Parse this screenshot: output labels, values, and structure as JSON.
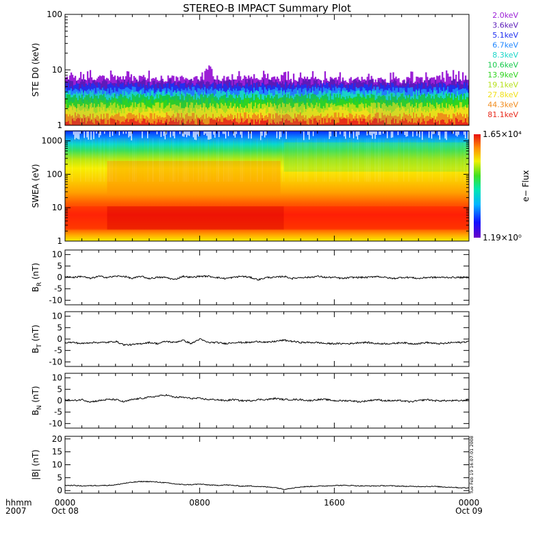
{
  "title": "STEREO-B IMPACT Summary Plot",
  "timestamp": "Tue Feb 19 16:07:01 2008",
  "xaxis": {
    "label_top": "hhmm",
    "label_bottom": "2007",
    "ticks": [
      {
        "hhmm": "0000",
        "date": "Oct 08",
        "hour": 0
      },
      {
        "hhmm": "0800",
        "date": "",
        "hour": 8
      },
      {
        "hhmm": "1600",
        "date": "",
        "hour": 16
      },
      {
        "hhmm": "0000",
        "date": "Oct 09",
        "hour": 24
      }
    ],
    "range_hours": [
      0,
      24
    ]
  },
  "chart_data": [
    {
      "type": "line",
      "panel": "ste",
      "ylabel": "STE D0 (keV)",
      "yscale": "log",
      "ylim": [
        1,
        100
      ],
      "yticks": [
        "1",
        "10",
        "100"
      ],
      "channels": [
        {
          "name": "2.0keV",
          "color": "#9b1fd6",
          "level": 7.0
        },
        {
          "name": "3.6keV",
          "color": "#5a1ab8",
          "level": 6.0
        },
        {
          "name": "5.1keV",
          "color": "#1f2ff0",
          "level": 5.2
        },
        {
          "name": "6.7keV",
          "color": "#1f86ff",
          "level": 4.4
        },
        {
          "name": "8.3keV",
          "color": "#19d6c8",
          "level": 3.8
        },
        {
          "name": "10.6keV",
          "color": "#14c94a",
          "level": 3.3
        },
        {
          "name": "13.9keV",
          "color": "#2ed41e",
          "level": 2.8
        },
        {
          "name": "19.1keV",
          "color": "#b6e01a",
          "level": 2.3
        },
        {
          "name": "27.8keV",
          "color": "#f0e01a",
          "level": 1.9
        },
        {
          "name": "44.3keV",
          "color": "#f08a1a",
          "level": 1.5
        },
        {
          "name": "81.1keV",
          "color": "#e8281a",
          "level": 1.2
        }
      ]
    },
    {
      "type": "heatmap",
      "panel": "swea",
      "ylabel": "SWEA (eV)",
      "yscale": "log",
      "ylim": [
        1,
        2000
      ],
      "yticks": [
        "1",
        "10",
        "100",
        "1000"
      ],
      "colorbar": {
        "label": "e− Flux",
        "max": "1.65×10⁴",
        "min": "1.19×10⁰"
      }
    },
    {
      "type": "line",
      "panel": "br",
      "ylabel": "B_R (nT)",
      "ylim": [
        -12,
        12
      ],
      "yticks": [
        -10,
        -5,
        0,
        5,
        10
      ],
      "x_hours": [
        0,
        0.5,
        1,
        1.5,
        2,
        2.5,
        3,
        3.5,
        4,
        4.5,
        5,
        5.5,
        6,
        6.5,
        7,
        7.5,
        8,
        8.5,
        9,
        9.5,
        10,
        10.5,
        11,
        11.5,
        12,
        12.5,
        13,
        13.5,
        14,
        14.5,
        15,
        15.5,
        16,
        16.5,
        17,
        17.5,
        18,
        18.5,
        19,
        19.5,
        20,
        20.5,
        21,
        21.5,
        22,
        22.5,
        23,
        23.5,
        24
      ],
      "values": [
        0.5,
        0,
        0.5,
        -0.5,
        0.5,
        0,
        0.5,
        0.5,
        -0.5,
        0.5,
        -0.5,
        0,
        0,
        -1,
        0.5,
        0,
        0.5,
        0.5,
        0,
        -0.5,
        0,
        0.5,
        0,
        -1,
        0,
        0,
        0.5,
        -0.5,
        0,
        0,
        0.5,
        0,
        0,
        -0.5,
        0,
        0,
        0,
        0.5,
        0,
        -0.5,
        0,
        0,
        -0.5,
        0,
        0,
        0,
        0,
        0,
        0
      ]
    },
    {
      "type": "line",
      "panel": "bt",
      "ylabel": "B_T (nT)",
      "ylim": [
        -12,
        12
      ],
      "yticks": [
        -10,
        -5,
        0,
        5,
        10
      ],
      "x_hours": [
        0,
        0.5,
        1,
        1.5,
        2,
        2.5,
        3,
        3.5,
        4,
        4.5,
        5,
        5.5,
        6,
        6.5,
        7,
        7.5,
        8,
        8.5,
        9,
        9.5,
        10,
        10.5,
        11,
        11.5,
        12,
        12.5,
        13,
        13.5,
        14,
        14.5,
        15,
        15.5,
        16,
        16.5,
        17,
        17.5,
        18,
        18.5,
        19,
        19.5,
        20,
        20.5,
        21,
        21.5,
        22,
        22.5,
        23,
        23.5,
        24
      ],
      "values": [
        -1.5,
        -1.5,
        -2,
        -1.5,
        -1.5,
        -1.5,
        -1,
        -2.5,
        -2.5,
        -2,
        -1.5,
        -2,
        -1,
        -1.5,
        -0.5,
        -2,
        0,
        -1.5,
        -1.5,
        -2,
        -1.5,
        -1.5,
        -1.5,
        -1,
        -1.5,
        -1,
        -0.5,
        -1,
        -1.5,
        -1.5,
        -1.5,
        -2,
        -2,
        -2,
        -2,
        -1.5,
        -1.5,
        -2,
        -2,
        -2,
        -1.5,
        -2,
        -2,
        -1.5,
        -2,
        -2,
        -1.5,
        -1.5,
        -1
      ]
    },
    {
      "type": "line",
      "panel": "bn",
      "ylabel": "B_N (nT)",
      "ylim": [
        -12,
        12
      ],
      "yticks": [
        -10,
        -5,
        0,
        5,
        10
      ],
      "x_hours": [
        0,
        0.5,
        1,
        1.5,
        2,
        2.5,
        3,
        3.5,
        4,
        4.5,
        5,
        5.5,
        6,
        6.5,
        7,
        7.5,
        8,
        8.5,
        9,
        9.5,
        10,
        10.5,
        11,
        11.5,
        12,
        12.5,
        13,
        13.5,
        14,
        14.5,
        15,
        15.5,
        16,
        16.5,
        17,
        17.5,
        18,
        18.5,
        19,
        19.5,
        20,
        20.5,
        21,
        21.5,
        22,
        22.5,
        23,
        23.5,
        24
      ],
      "values": [
        0.5,
        0,
        0.5,
        -0.5,
        0,
        0.5,
        0.5,
        -0.5,
        0.5,
        1,
        1.5,
        2,
        2.5,
        1.5,
        1.5,
        1,
        1,
        0.5,
        0.5,
        0,
        0.5,
        0,
        0,
        0.5,
        0.5,
        1,
        0.5,
        0.5,
        0.5,
        0,
        0.5,
        0.5,
        0,
        0,
        0,
        -0.5,
        0,
        0.5,
        0,
        0,
        0,
        -0.5,
        0,
        0.5,
        0,
        0,
        0,
        0,
        0.5
      ]
    },
    {
      "type": "line",
      "panel": "b",
      "ylabel": "|B| (nT)",
      "ylim": [
        -1,
        21
      ],
      "yticks": [
        0,
        5,
        10,
        15,
        20
      ],
      "x_hours": [
        0,
        0.5,
        1,
        1.5,
        2,
        2.5,
        3,
        3.5,
        4,
        4.5,
        5,
        5.5,
        6,
        6.5,
        7,
        7.5,
        8,
        8.5,
        9,
        9.5,
        10,
        10.5,
        11,
        11.5,
        12,
        12.5,
        13,
        13.5,
        14,
        14.5,
        15,
        15.5,
        16,
        16.5,
        17,
        17.5,
        18,
        18.5,
        19,
        19.5,
        20,
        20.5,
        21,
        21.5,
        22,
        22.5,
        23,
        23.5,
        24
      ],
      "values": [
        2,
        2,
        1.8,
        1.9,
        2,
        2,
        2.2,
        2.8,
        3.2,
        3.5,
        3.5,
        3.3,
        3,
        2.6,
        2.3,
        2.3,
        2.5,
        2.2,
        2,
        2.2,
        2,
        1.7,
        1.8,
        1.6,
        1.4,
        1.2,
        0.5,
        1,
        1.4,
        1.6,
        1.7,
        1.8,
        2,
        2,
        2,
        1.8,
        1.8,
        1.8,
        1.9,
        1.8,
        1.7,
        1.6,
        1.6,
        1.6,
        1.6,
        1.4,
        1.3,
        1.1,
        1
      ]
    }
  ]
}
